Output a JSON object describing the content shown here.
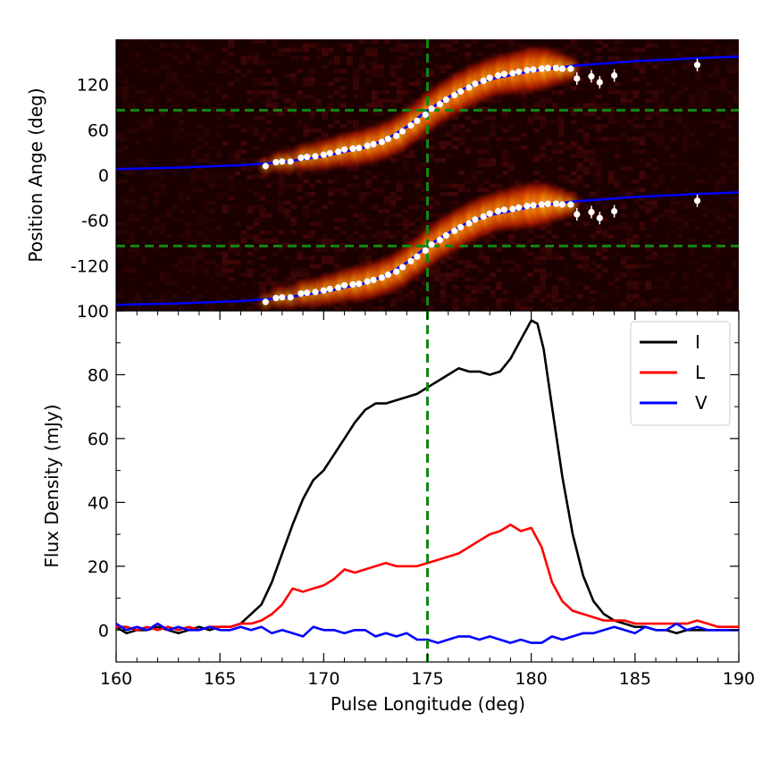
{
  "chart_data": [
    {
      "type": "heatmap",
      "title": "",
      "xlabel": "",
      "ylabel": "Position Ange (deg)",
      "xlim": [
        160,
        190
      ],
      "ylim": [
        -180,
        180
      ],
      "y_ticks": [
        120,
        60,
        0,
        -60,
        -120
      ],
      "y_tick_labels": [
        "120",
        "60",
        "0",
        "-60",
        "-120"
      ],
      "background_color": "#1a0000",
      "model_curve_color": "#0000ff",
      "points_color": "#ffffff",
      "reference_line_color": "#118811",
      "reference_lines": {
        "pulse_longitude": 175,
        "position_angle": [
          86,
          -94
        ]
      },
      "model_curve": {
        "description_values_x": [
          160,
          163,
          166,
          168,
          170,
          172,
          173,
          174,
          175,
          176,
          177,
          178,
          180,
          182,
          185,
          188,
          190
        ],
        "upper_y": [
          8,
          10,
          13,
          17,
          25,
          37,
          47,
          64,
          86,
          103,
          118,
          127,
          138,
          145,
          151,
          155,
          157
        ],
        "lower_y": [
          -172,
          -170,
          -167,
          -163,
          -155,
          -143,
          -133,
          -116,
          -94,
          -77,
          -62,
          -53,
          -42,
          -35,
          -29,
          -25,
          -23
        ]
      },
      "series": [
        {
          "name": "PA measurements",
          "x": [
            167.2,
            167.7,
            168.0,
            168.4,
            168.9,
            169.2,
            169.6,
            170.0,
            170.3,
            170.7,
            171.0,
            171.4,
            171.7,
            172.1,
            172.4,
            172.8,
            173.1,
            173.5,
            173.8,
            174.2,
            174.5,
            174.9,
            175.2,
            175.6,
            175.9,
            176.3,
            176.6,
            177.0,
            177.3,
            177.7,
            178.0,
            178.4,
            178.7,
            179.1,
            179.4,
            179.8,
            180.1,
            180.5,
            180.8,
            181.2,
            181.5,
            181.9,
            182.2,
            182.9,
            183.3,
            184.0,
            188.0
          ],
          "y": [
            12,
            17,
            18,
            18,
            23,
            24,
            25,
            27,
            29,
            31,
            34,
            35,
            36,
            39,
            41,
            44,
            48,
            52,
            58,
            66,
            72,
            80,
            88,
            94,
            100,
            106,
            111,
            116,
            121,
            125,
            129,
            132,
            134,
            135,
            137,
            139,
            140,
            141,
            142,
            142,
            141,
            141,
            128,
            131,
            123,
            132,
            146
          ]
        }
      ]
    },
    {
      "type": "line",
      "title": "",
      "xlabel": "Pulse Longitude (deg)",
      "ylabel": "Flux Density (mJy)",
      "xlim": [
        160,
        190
      ],
      "ylim": [
        -10,
        100
      ],
      "x_ticks": [
        160,
        165,
        170,
        175,
        180,
        185,
        190
      ],
      "x_tick_labels": [
        "160",
        "165",
        "170",
        "175",
        "180",
        "185",
        "190"
      ],
      "y_ticks": [
        0,
        20,
        40,
        60,
        80,
        100
      ],
      "y_tick_labels": [
        "0",
        "20",
        "40",
        "60",
        "80",
        "100"
      ],
      "grid": false,
      "legend_position": "top-right",
      "reference_line_x": 175,
      "series": [
        {
          "name": "I",
          "color": "#000000",
          "x": [
            160,
            160.5,
            161,
            161.5,
            162,
            162.5,
            163,
            163.5,
            164,
            164.5,
            165,
            165.5,
            166,
            166.5,
            167,
            167.5,
            168,
            168.5,
            169,
            169.5,
            170,
            170.5,
            171,
            171.5,
            172,
            172.5,
            173,
            173.5,
            174,
            174.5,
            175,
            175.5,
            176,
            176.5,
            177,
            177.5,
            178,
            178.5,
            179,
            179.5,
            180,
            180.3,
            180.6,
            181,
            181.5,
            182,
            182.5,
            183,
            183.5,
            184,
            184.5,
            185,
            185.5,
            186,
            186.5,
            187,
            187.5,
            188,
            188.5,
            189,
            189.5,
            190
          ],
          "values": [
            1,
            -1,
            0,
            0,
            1,
            0,
            -1,
            0,
            1,
            0,
            1,
            1,
            2,
            5,
            8,
            15,
            24,
            33,
            41,
            47,
            50,
            55,
            60,
            65,
            69,
            71,
            71,
            72,
            73,
            74,
            76,
            78,
            80,
            82,
            81,
            81,
            80,
            81,
            85,
            91,
            97,
            96,
            88,
            70,
            48,
            30,
            17,
            9,
            5,
            3,
            2,
            1,
            1,
            0,
            0,
            -1,
            0,
            0,
            0,
            0,
            0,
            0
          ]
        },
        {
          "name": "L",
          "color": "#ff0000",
          "x": [
            160,
            160.5,
            161,
            161.5,
            162,
            162.5,
            163,
            163.5,
            164,
            164.5,
            165,
            165.5,
            166,
            166.5,
            167,
            167.5,
            168,
            168.5,
            169,
            169.5,
            170,
            170.5,
            171,
            171.5,
            172,
            172.5,
            173,
            173.5,
            174,
            174.5,
            175,
            175.5,
            176,
            176.5,
            177,
            177.5,
            178,
            178.5,
            179,
            179.5,
            180,
            180.5,
            181,
            181.5,
            182,
            182.5,
            183,
            183.5,
            184,
            184.5,
            185,
            185.5,
            186,
            186.5,
            187,
            187.5,
            188,
            188.5,
            189,
            189.5,
            190
          ],
          "values": [
            1,
            1,
            0,
            1,
            0,
            1,
            0,
            1,
            0,
            1,
            1,
            1,
            2,
            2,
            3,
            5,
            8,
            13,
            12,
            13,
            14,
            16,
            19,
            18,
            19,
            20,
            21,
            20,
            20,
            20,
            21,
            22,
            23,
            24,
            26,
            28,
            30,
            31,
            33,
            31,
            32,
            26,
            15,
            9,
            6,
            5,
            4,
            3,
            3,
            3,
            2,
            2,
            2,
            2,
            2,
            2,
            3,
            2,
            1,
            1,
            1
          ]
        },
        {
          "name": "V",
          "color": "#0000ff",
          "x": [
            160,
            160.5,
            161,
            161.5,
            162,
            162.5,
            163,
            163.5,
            164,
            164.5,
            165,
            165.5,
            166,
            166.5,
            167,
            167.5,
            168,
            168.5,
            169,
            169.5,
            170,
            170.5,
            171,
            171.5,
            172,
            172.5,
            173,
            173.5,
            174,
            174.5,
            175,
            175.5,
            176,
            176.5,
            177,
            177.5,
            178,
            178.5,
            179,
            179.5,
            180,
            180.5,
            181,
            181.5,
            182,
            182.5,
            183,
            183.5,
            184,
            184.5,
            185,
            185.5,
            186,
            186.5,
            187,
            187.5,
            188,
            188.5,
            189,
            189.5,
            190
          ],
          "values": [
            2,
            0,
            1,
            0,
            2,
            0,
            1,
            0,
            0,
            1,
            0,
            0,
            1,
            0,
            1,
            -1,
            0,
            -1,
            -2,
            1,
            0,
            0,
            -1,
            0,
            0,
            -2,
            -1,
            -2,
            -1,
            -3,
            -3,
            -4,
            -3,
            -2,
            -2,
            -3,
            -2,
            -3,
            -4,
            -3,
            -4,
            -4,
            -2,
            -3,
            -2,
            -1,
            -1,
            0,
            1,
            0,
            -1,
            1,
            0,
            0,
            2,
            0,
            1,
            0,
            0,
            0,
            0
          ]
        }
      ]
    }
  ]
}
